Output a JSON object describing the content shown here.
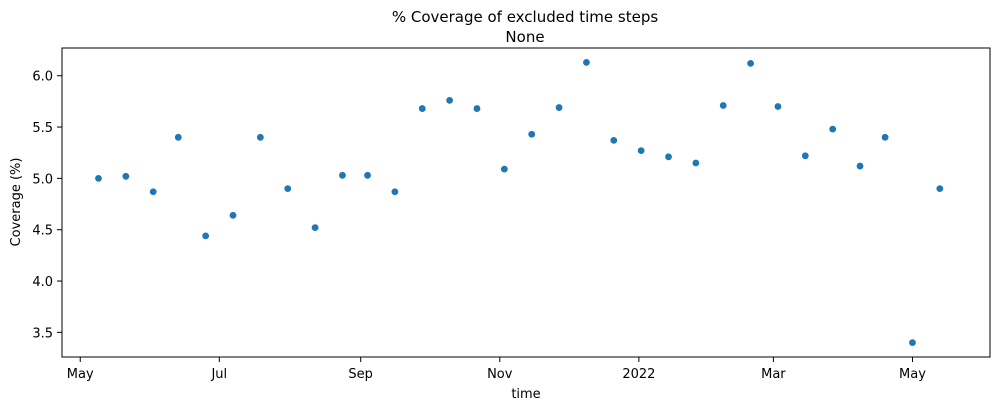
{
  "chart_data": {
    "type": "scatter",
    "title": "% Coverage of excluded time steps",
    "subtitle": "None",
    "xlabel": "time",
    "ylabel": "Coverage (%)",
    "x_axis": "date",
    "xlim": [
      "2021-04-23",
      "2022-06-04"
    ],
    "ylim": [
      3.26,
      6.27
    ],
    "x_ticks": [
      {
        "date": "2021-05-01",
        "label": "May"
      },
      {
        "date": "2021-07-01",
        "label": "Jul"
      },
      {
        "date": "2021-09-01",
        "label": "Sep"
      },
      {
        "date": "2021-11-01",
        "label": "Nov"
      },
      {
        "date": "2022-01-01",
        "label": "2022"
      },
      {
        "date": "2022-03-01",
        "label": "Mar"
      },
      {
        "date": "2022-05-01",
        "label": "May"
      }
    ],
    "y_ticks": [
      3.5,
      4.0,
      4.5,
      5.0,
      5.5,
      6.0
    ],
    "y_tick_labels": [
      "3.5",
      "4.0",
      "4.5",
      "5.0",
      "5.5",
      "6.0"
    ],
    "color": "#1f77b4",
    "grid": false,
    "legend": "none",
    "points": [
      {
        "x": "2021-05-09",
        "y": 5.0
      },
      {
        "x": "2021-05-21",
        "y": 5.02
      },
      {
        "x": "2021-06-02",
        "y": 4.87
      },
      {
        "x": "2021-06-13",
        "y": 5.4
      },
      {
        "x": "2021-06-25",
        "y": 4.44
      },
      {
        "x": "2021-07-07",
        "y": 4.64
      },
      {
        "x": "2021-07-19",
        "y": 5.4
      },
      {
        "x": "2021-07-31",
        "y": 4.9
      },
      {
        "x": "2021-08-12",
        "y": 4.52
      },
      {
        "x": "2021-08-24",
        "y": 5.03
      },
      {
        "x": "2021-09-04",
        "y": 5.03
      },
      {
        "x": "2021-09-16",
        "y": 4.87
      },
      {
        "x": "2021-09-28",
        "y": 5.68
      },
      {
        "x": "2021-10-10",
        "y": 5.76
      },
      {
        "x": "2021-10-22",
        "y": 5.68
      },
      {
        "x": "2021-11-03",
        "y": 5.09
      },
      {
        "x": "2021-11-15",
        "y": 5.43
      },
      {
        "x": "2021-11-27",
        "y": 5.69
      },
      {
        "x": "2021-12-09",
        "y": 6.13
      },
      {
        "x": "2021-12-21",
        "y": 5.37
      },
      {
        "x": "2022-01-02",
        "y": 5.27
      },
      {
        "x": "2022-01-14",
        "y": 5.21
      },
      {
        "x": "2022-01-26",
        "y": 5.15
      },
      {
        "x": "2022-02-07",
        "y": 5.71
      },
      {
        "x": "2022-02-19",
        "y": 6.12
      },
      {
        "x": "2022-03-03",
        "y": 5.7
      },
      {
        "x": "2022-03-15",
        "y": 5.22
      },
      {
        "x": "2022-03-27",
        "y": 5.48
      },
      {
        "x": "2022-04-08",
        "y": 5.12
      },
      {
        "x": "2022-04-19",
        "y": 5.4
      },
      {
        "x": "2022-05-01",
        "y": 3.4
      },
      {
        "x": "2022-05-13",
        "y": 4.9
      }
    ]
  }
}
